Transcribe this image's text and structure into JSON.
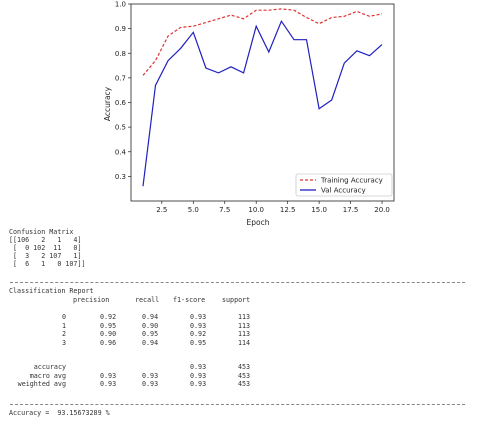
{
  "chart_data": {
    "type": "line",
    "title": "",
    "xlabel": "Epoch",
    "ylabel": "Accuracy",
    "xlim": [
      0.05,
      20.95
    ],
    "ylim": [
      0.2,
      1.0
    ],
    "xticks": [
      "2.5",
      "5.0",
      "7.5",
      "10.0",
      "12.5",
      "15.0",
      "17.5",
      "20.0"
    ],
    "yticks": [
      "0.3",
      "0.4",
      "0.5",
      "0.6",
      "0.7",
      "0.8",
      "0.9",
      "1.0"
    ],
    "legend_position": "lower-right",
    "series": [
      {
        "name": "Training Accuracy",
        "color": "#e03030",
        "style": "dashed",
        "x": [
          1,
          2,
          3,
          4,
          5,
          6,
          7,
          8,
          9,
          10,
          11,
          12,
          13,
          14,
          15,
          16,
          17,
          18,
          19,
          20
        ],
        "y": [
          0.71,
          0.77,
          0.87,
          0.905,
          0.91,
          0.925,
          0.94,
          0.955,
          0.94,
          0.975,
          0.975,
          0.98,
          0.975,
          0.945,
          0.92,
          0.945,
          0.95,
          0.97,
          0.95,
          0.96
        ]
      },
      {
        "name": "Val Accuracy",
        "color": "#1f1fbf",
        "style": "solid",
        "x": [
          1,
          2,
          3,
          4,
          5,
          6,
          7,
          8,
          9,
          10,
          11,
          12,
          13,
          14,
          15,
          16,
          17,
          18,
          19,
          20
        ],
        "y": [
          0.26,
          0.67,
          0.77,
          0.82,
          0.885,
          0.74,
          0.72,
          0.745,
          0.72,
          0.91,
          0.805,
          0.93,
          0.855,
          0.855,
          0.575,
          0.61,
          0.76,
          0.81,
          0.79,
          0.835
        ]
      }
    ]
  },
  "confusion": {
    "title": "Confusion Matrix",
    "rows": [
      "[[106   2   1   4]",
      " [  0 102  11   0]",
      " [  3   2 107   1]",
      " [  6   1   0 107]]"
    ]
  },
  "report": {
    "title": "Classification Report",
    "headers": {
      "precision": "precision",
      "recall": "recall",
      "f1": "f1-score",
      "support": "support"
    },
    "rows": [
      {
        "label": "0",
        "p": "0.92",
        "r": "0.94",
        "f": "0.93",
        "s": "113"
      },
      {
        "label": "1",
        "p": "0.95",
        "r": "0.90",
        "f": "0.93",
        "s": "113"
      },
      {
        "label": "2",
        "p": "0.90",
        "r": "0.95",
        "f": "0.92",
        "s": "113"
      },
      {
        "label": "3",
        "p": "0.96",
        "r": "0.94",
        "f": "0.95",
        "s": "114"
      }
    ],
    "summary": [
      {
        "label": "accuracy",
        "p": "",
        "r": "",
        "f": "0.93",
        "s": "453"
      },
      {
        "label": "macro avg",
        "p": "0.93",
        "r": "0.93",
        "f": "0.93",
        "s": "453"
      },
      {
        "label": "weighted avg",
        "p": "0.93",
        "r": "0.93",
        "f": "0.93",
        "s": "453"
      }
    ]
  },
  "accuracy_line": "Accuracy =  93.15673289 %"
}
